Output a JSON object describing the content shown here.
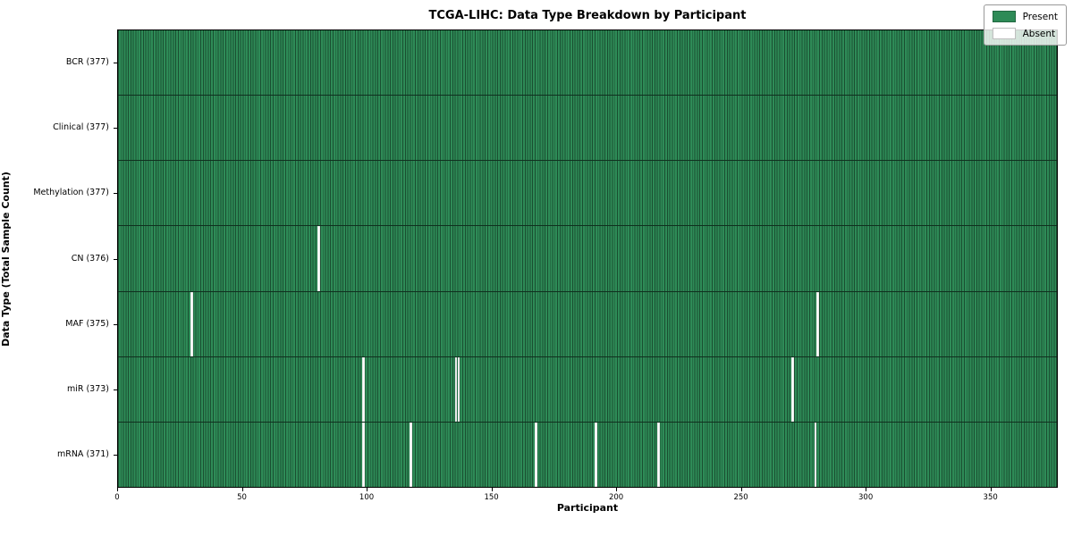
{
  "chart_data": {
    "type": "heatmap",
    "title": "TCGA-LIHC: Data Type Breakdown by Participant",
    "xlabel": "Participant",
    "ylabel": "Data Type (Total Sample Count)",
    "x_range": [
      0,
      377
    ],
    "n_participants": 377,
    "x_ticks": [
      0,
      50,
      100,
      150,
      200,
      250,
      300,
      350
    ],
    "grid": false,
    "legend_position": "upper right",
    "legend": [
      {
        "label": "Present",
        "color": "#2e8b57"
      },
      {
        "label": "Absent",
        "color": "#ffffff"
      }
    ],
    "colors": {
      "present": "#2e8b57",
      "absent": "#ffffff",
      "cell_edge": "#173b27",
      "row_divider": "#10301f",
      "background": "#ffffff",
      "text": "#000000"
    },
    "rows": [
      {
        "name": "BCR",
        "label": "BCR (377)",
        "total": 377,
        "absent_participants": []
      },
      {
        "name": "Clinical",
        "label": "Clinical (377)",
        "total": 377,
        "absent_participants": []
      },
      {
        "name": "Methylation",
        "label": "Methylation (377)",
        "total": 377,
        "absent_participants": []
      },
      {
        "name": "CN",
        "label": "CN (376)",
        "total": 376,
        "absent_participants": [
          80
        ]
      },
      {
        "name": "MAF",
        "label": "MAF (375)",
        "total": 375,
        "absent_participants": [
          29,
          280
        ]
      },
      {
        "name": "miR",
        "label": "miR (373)",
        "total": 373,
        "absent_participants": [
          98,
          135,
          136,
          270
        ]
      },
      {
        "name": "mRNA",
        "label": "mRNA (371)",
        "total": 371,
        "absent_participants": [
          98,
          117,
          167,
          191,
          216,
          279
        ]
      }
    ]
  }
}
